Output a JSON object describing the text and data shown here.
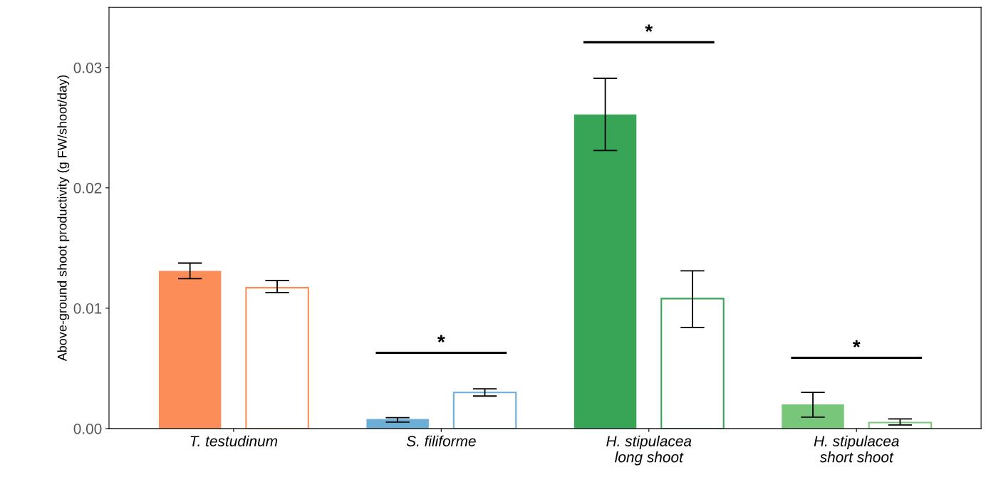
{
  "chart_data": {
    "type": "bar",
    "ylabel": "Above-ground shoot productivity (g FW/shoot/day)",
    "categories": [
      "T. testudinum",
      "S. filiforme",
      "H. stipulacea\nlong shoot",
      "H. stipulacea\nshort shoot"
    ],
    "series": [
      {
        "colors": [
          "#fc8d59",
          "#6baed6",
          "#37a456",
          "#78c679"
        ],
        "values": [
          0.0131,
          0.0008,
          0.0261,
          0.002
        ],
        "errors": [
          [
            0.01245,
            0.01375
          ],
          [
            0.00053,
            0.0009
          ],
          [
            0.0231,
            0.0291
          ],
          [
            0.00095,
            0.003
          ]
        ]
      },
      {
        "colors": [
          "#fc8d59",
          "#6baed6",
          "#37a456",
          "#78c679"
        ],
        "values": [
          0.0117,
          0.003,
          0.0108,
          0.0005
        ],
        "errors": [
          [
            0.0113,
            0.0123
          ],
          [
            0.0027,
            0.0033
          ],
          [
            0.0084,
            0.0131
          ],
          [
            0.0003,
            0.0008
          ]
        ]
      }
    ],
    "annotations": [
      "*",
      "*",
      "*"
    ],
    "ylim": [
      0,
      0.035
    ],
    "yticks": [
      {
        "value": 0,
        "label": "0.00"
      },
      {
        "value": 0.01,
        "label": "0.01"
      },
      {
        "value": 0.02,
        "label": "0.02"
      },
      {
        "value": 0.03,
        "label": "0.03"
      }
    ],
    "grid": false,
    "legend": false
  }
}
